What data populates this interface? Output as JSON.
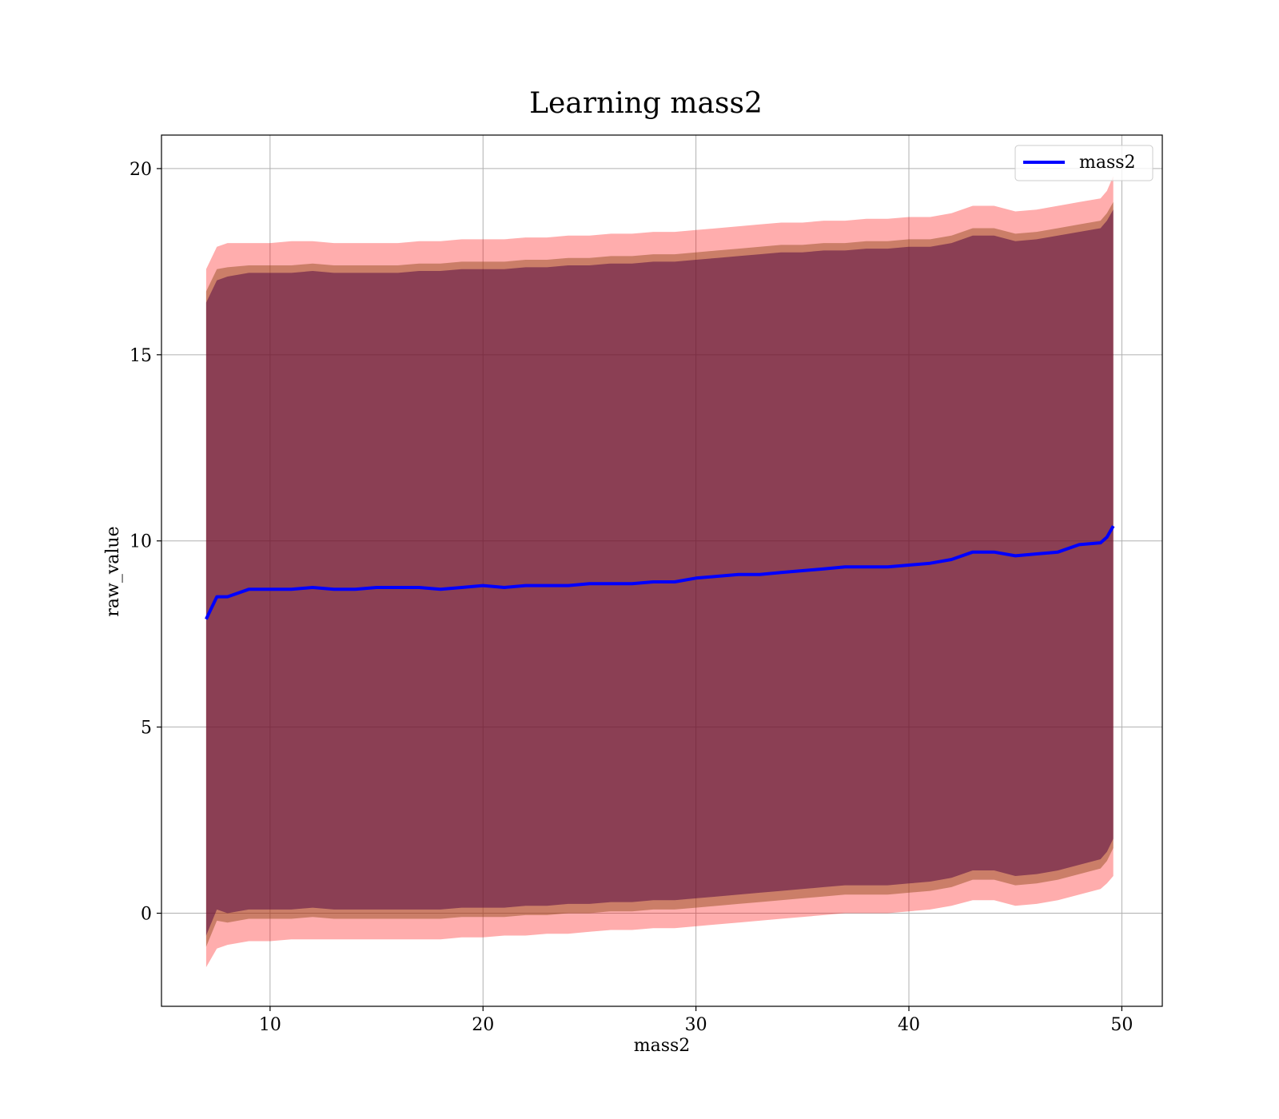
{
  "chart_data": {
    "type": "line",
    "title": "Learning mass2",
    "xlabel": "mass2",
    "ylabel": "raw_value",
    "xlim": [
      4.9,
      51.9
    ],
    "ylim": [
      -2.5,
      20.9
    ],
    "xticks": [
      10,
      20,
      30,
      40,
      50
    ],
    "yticks": [
      0,
      5,
      10,
      15,
      20
    ],
    "grid": true,
    "legend": {
      "position": "top-right",
      "entries": [
        "mass2"
      ]
    },
    "colors": {
      "line": "#0000ff",
      "band_outer": "#ff0000",
      "band_mid": "#8b4513",
      "band_inner": "#4b0040"
    },
    "series": [
      {
        "name": "mass2",
        "x": [
          7.0,
          7.5,
          8.0,
          9.0,
          10.0,
          11.0,
          12.0,
          13.0,
          14.0,
          15.0,
          16.0,
          17.0,
          18.0,
          19.0,
          20.0,
          21.0,
          22.0,
          23.0,
          24.0,
          25.0,
          26.0,
          27.0,
          28.0,
          29.0,
          30.0,
          31.0,
          32.0,
          33.0,
          34.0,
          35.0,
          36.0,
          37.0,
          38.0,
          39.0,
          40.0,
          41.0,
          42.0,
          43.0,
          44.0,
          45.0,
          46.0,
          47.0,
          48.0,
          49.0,
          49.3,
          49.6
        ],
        "y": [
          7.9,
          8.5,
          8.5,
          8.7,
          8.7,
          8.7,
          8.75,
          8.7,
          8.7,
          8.75,
          8.75,
          8.75,
          8.7,
          8.75,
          8.8,
          8.75,
          8.8,
          8.8,
          8.8,
          8.85,
          8.85,
          8.85,
          8.9,
          8.9,
          9.0,
          9.05,
          9.1,
          9.1,
          9.15,
          9.2,
          9.25,
          9.3,
          9.3,
          9.3,
          9.35,
          9.4,
          9.5,
          9.7,
          9.7,
          9.6,
          9.65,
          9.7,
          9.9,
          9.95,
          10.1,
          10.4
        ],
        "outer_upper": [
          17.3,
          17.9,
          18.0,
          18.0,
          18.0,
          18.05,
          18.05,
          18.0,
          18.0,
          18.0,
          18.0,
          18.05,
          18.05,
          18.1,
          18.1,
          18.1,
          18.15,
          18.15,
          18.2,
          18.2,
          18.25,
          18.25,
          18.3,
          18.3,
          18.35,
          18.4,
          18.45,
          18.5,
          18.55,
          18.55,
          18.6,
          18.6,
          18.65,
          18.65,
          18.7,
          18.7,
          18.8,
          19.0,
          19.0,
          18.85,
          18.9,
          19.0,
          19.1,
          19.2,
          19.4,
          19.8
        ],
        "mid_upper": [
          16.7,
          17.3,
          17.35,
          17.4,
          17.4,
          17.4,
          17.45,
          17.4,
          17.4,
          17.4,
          17.4,
          17.45,
          17.45,
          17.5,
          17.5,
          17.5,
          17.55,
          17.55,
          17.6,
          17.6,
          17.65,
          17.65,
          17.7,
          17.7,
          17.75,
          17.8,
          17.85,
          17.9,
          17.95,
          17.95,
          18.0,
          18.0,
          18.05,
          18.05,
          18.1,
          18.1,
          18.2,
          18.4,
          18.4,
          18.25,
          18.3,
          18.4,
          18.5,
          18.6,
          18.8,
          19.1
        ],
        "inner_upper": [
          16.4,
          17.0,
          17.1,
          17.2,
          17.2,
          17.2,
          17.25,
          17.2,
          17.2,
          17.2,
          17.2,
          17.25,
          17.25,
          17.3,
          17.3,
          17.3,
          17.35,
          17.35,
          17.4,
          17.4,
          17.45,
          17.45,
          17.5,
          17.5,
          17.55,
          17.6,
          17.65,
          17.7,
          17.75,
          17.75,
          17.8,
          17.8,
          17.85,
          17.85,
          17.9,
          17.9,
          18.0,
          18.2,
          18.2,
          18.05,
          18.1,
          18.2,
          18.3,
          18.4,
          18.6,
          18.9
        ],
        "inner_lower": [
          -0.6,
          0.1,
          0.0,
          0.1,
          0.1,
          0.1,
          0.15,
          0.1,
          0.1,
          0.1,
          0.1,
          0.1,
          0.1,
          0.15,
          0.15,
          0.15,
          0.2,
          0.2,
          0.25,
          0.25,
          0.3,
          0.3,
          0.35,
          0.35,
          0.4,
          0.45,
          0.5,
          0.55,
          0.6,
          0.65,
          0.7,
          0.75,
          0.75,
          0.75,
          0.8,
          0.85,
          0.95,
          1.15,
          1.15,
          1.0,
          1.05,
          1.15,
          1.3,
          1.45,
          1.65,
          2.0
        ],
        "mid_lower": [
          -0.9,
          -0.2,
          -0.25,
          -0.15,
          -0.15,
          -0.15,
          -0.1,
          -0.15,
          -0.15,
          -0.15,
          -0.15,
          -0.15,
          -0.15,
          -0.1,
          -0.1,
          -0.1,
          -0.05,
          -0.05,
          0.0,
          0.0,
          0.05,
          0.05,
          0.1,
          0.1,
          0.15,
          0.2,
          0.25,
          0.3,
          0.35,
          0.4,
          0.45,
          0.5,
          0.5,
          0.5,
          0.55,
          0.6,
          0.7,
          0.9,
          0.9,
          0.75,
          0.8,
          0.9,
          1.05,
          1.2,
          1.4,
          1.75
        ],
        "outer_lower": [
          -1.45,
          -0.95,
          -0.85,
          -0.75,
          -0.75,
          -0.7,
          -0.7,
          -0.7,
          -0.7,
          -0.7,
          -0.7,
          -0.7,
          -0.7,
          -0.65,
          -0.65,
          -0.6,
          -0.6,
          -0.55,
          -0.55,
          -0.5,
          -0.45,
          -0.45,
          -0.4,
          -0.4,
          -0.35,
          -0.3,
          -0.25,
          -0.2,
          -0.15,
          -0.1,
          -0.05,
          0.0,
          0.0,
          0.0,
          0.05,
          0.1,
          0.2,
          0.35,
          0.35,
          0.2,
          0.25,
          0.35,
          0.5,
          0.65,
          0.8,
          1.0
        ]
      }
    ]
  }
}
